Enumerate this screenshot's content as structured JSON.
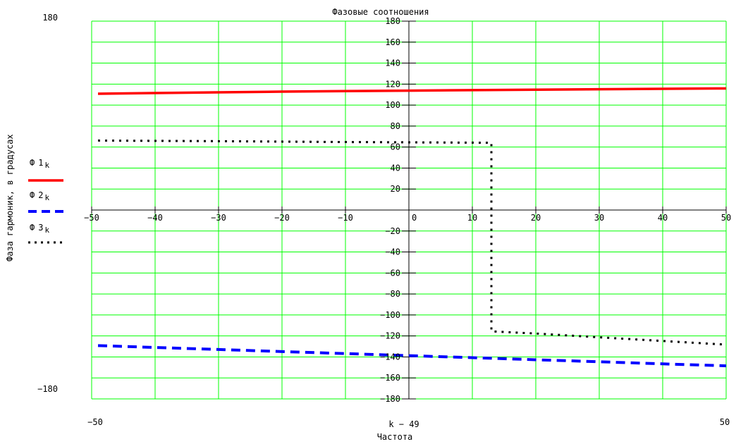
{
  "title": "Фазовые соотношения",
  "y_axis": {
    "label": "Фаза гармоник, в градусах",
    "max_label": "180",
    "min_label": "−180"
  },
  "x_axis": {
    "label": "Частота",
    "expr": "k − 49",
    "min_label": "−50",
    "max_label": "50"
  },
  "legend": [
    {
      "symbol": "Ф",
      "index": "1",
      "sub": "k",
      "color": "#ff0000",
      "style": "solid"
    },
    {
      "symbol": "Ф",
      "index": "2",
      "sub": "k",
      "color": "#0000ff",
      "style": "dashed"
    },
    {
      "symbol": "Ф",
      "index": "3",
      "sub": "k",
      "color": "#000000",
      "style": "dotted"
    }
  ],
  "colors": {
    "grid": "#00ff00",
    "axis": "#000000",
    "background": "#ffffff"
  },
  "chart_data": {
    "type": "line",
    "title": "Фазовые соотношения",
    "xlabel": "Частота",
    "xlabel_expr": "k − 49",
    "ylabel": "Фаза гармоник, в градусах",
    "xlim": [
      -50,
      50
    ],
    "ylim": [
      -180,
      180
    ],
    "x_ticks": [
      -50,
      -40,
      -30,
      -20,
      -10,
      0,
      10,
      20,
      30,
      40,
      50
    ],
    "y_ticks": [
      180,
      160,
      140,
      120,
      100,
      80,
      60,
      40,
      20,
      0,
      -20,
      -40,
      -60,
      -80,
      -100,
      -120,
      -140,
      -160,
      -180
    ],
    "grid": true,
    "grid_color": "#00ff00",
    "legend_position": "left",
    "series": [
      {
        "id": "phi1",
        "name": "Ф1k",
        "color": "#ff0000",
        "style": "solid",
        "points": [
          [
            -49,
            110.8
          ],
          [
            -40,
            111.5
          ],
          [
            -30,
            112.2
          ],
          [
            -20,
            112.8
          ],
          [
            -10,
            113.3
          ],
          [
            0,
            113.8
          ],
          [
            10,
            114.3
          ],
          [
            20,
            114.7
          ],
          [
            30,
            115.1
          ],
          [
            40,
            115.5
          ],
          [
            50,
            115.9
          ]
        ]
      },
      {
        "id": "phi2",
        "name": "Ф2k",
        "color": "#0000ff",
        "style": "dashed",
        "points": [
          [
            -49,
            -129.2
          ],
          [
            -40,
            -131.0
          ],
          [
            -30,
            -132.9
          ],
          [
            -20,
            -134.9
          ],
          [
            -10,
            -136.8
          ],
          [
            0,
            -138.8
          ],
          [
            10,
            -140.7
          ],
          [
            20,
            -142.7
          ],
          [
            30,
            -144.6
          ],
          [
            40,
            -146.6
          ],
          [
            50,
            -148.5
          ]
        ]
      },
      {
        "id": "phi3",
        "name": "Ф3k",
        "color": "#000000",
        "style": "dotted",
        "points": [
          [
            -49,
            66.2
          ],
          [
            -30,
            65.6
          ],
          [
            -10,
            64.8
          ],
          [
            0,
            64.5
          ],
          [
            13,
            64.1
          ],
          [
            13,
            -115.6
          ],
          [
            20,
            -117.7
          ],
          [
            30,
            -121.3
          ],
          [
            40,
            -124.8
          ],
          [
            50,
            -128.3
          ]
        ]
      }
    ]
  }
}
